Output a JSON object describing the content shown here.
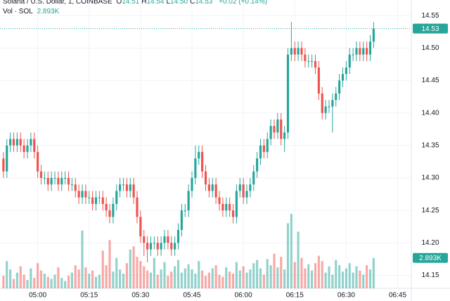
{
  "header": {
    "symbol": "Solana / U.S. Dollar, 1, COINBASE",
    "ohlc": [
      {
        "key": "O",
        "value": "14.51"
      },
      {
        "key": "H",
        "value": "14.54"
      },
      {
        "key": "L",
        "value": "14.50"
      },
      {
        "key": "C",
        "value": "14.53"
      }
    ],
    "change": "+0.02 (+0.14%)",
    "volume_label": "Vol · SOL"
  },
  "chart_data": {
    "type": "candlestick",
    "up_color": "#26a69a",
    "down_color": "#ef5350",
    "grid": true,
    "open": [
      14.33,
      14.31,
      14.35,
      14.36,
      14.35,
      14.36,
      14.35,
      14.34,
      14.35,
      14.36,
      14.34,
      14.31,
      14.3,
      14.3,
      14.29,
      14.3,
      14.3,
      14.29,
      14.3,
      14.3,
      14.29,
      14.29,
      14.28,
      14.27,
      14.28,
      14.27,
      14.27,
      14.26,
      14.27,
      14.27,
      14.26,
      14.25,
      14.24,
      14.26,
      14.28,
      14.29,
      14.29,
      14.28,
      14.29,
      14.27,
      14.24,
      14.21,
      14.2,
      14.19,
      14.2,
      14.2,
      14.19,
      14.2,
      14.21,
      14.2,
      14.19,
      14.2,
      14.22,
      14.25,
      14.25,
      14.28,
      14.3,
      14.33,
      14.34,
      14.31,
      14.29,
      14.28,
      14.29,
      14.27,
      14.26,
      14.25,
      14.26,
      14.25,
      14.24,
      14.28,
      14.29,
      14.27,
      14.28,
      14.29,
      14.31,
      14.33,
      14.35,
      14.34,
      14.36,
      14.38,
      14.37,
      14.39,
      14.36,
      14.37,
      14.49,
      14.5,
      14.49,
      14.5,
      14.49,
      14.48,
      14.48,
      14.48,
      14.47,
      14.43,
      14.4,
      14.41,
      14.41,
      14.42,
      14.43,
      14.45,
      14.46,
      14.47,
      14.49,
      14.49,
      14.5,
      14.49,
      14.5,
      14.49,
      14.51
    ],
    "high": [
      14.34,
      14.36,
      14.37,
      14.37,
      14.37,
      14.37,
      14.36,
      14.36,
      14.37,
      14.37,
      14.35,
      14.32,
      14.31,
      14.31,
      14.31,
      14.31,
      14.31,
      14.31,
      14.31,
      14.31,
      14.3,
      14.3,
      14.29,
      14.29,
      14.29,
      14.28,
      14.28,
      14.28,
      14.28,
      14.28,
      14.27,
      14.26,
      14.27,
      14.29,
      14.3,
      14.3,
      14.3,
      14.3,
      14.3,
      14.28,
      14.25,
      14.22,
      14.21,
      14.21,
      14.21,
      14.21,
      14.21,
      14.22,
      14.22,
      14.21,
      14.21,
      14.23,
      14.26,
      14.26,
      14.29,
      14.31,
      14.35,
      14.35,
      14.35,
      14.32,
      14.3,
      14.3,
      14.3,
      14.28,
      14.27,
      14.27,
      14.27,
      14.26,
      14.29,
      14.3,
      14.3,
      14.29,
      14.3,
      14.32,
      14.34,
      14.36,
      14.36,
      14.37,
      14.39,
      14.39,
      14.4,
      14.4,
      14.38,
      14.5,
      14.54,
      14.51,
      14.51,
      14.51,
      14.5,
      14.49,
      14.49,
      14.49,
      14.48,
      14.44,
      14.42,
      14.42,
      14.43,
      14.44,
      14.46,
      14.47,
      14.48,
      14.5,
      14.5,
      14.51,
      14.51,
      14.51,
      14.51,
      14.52,
      14.54
    ],
    "low": [
      14.3,
      14.3,
      14.34,
      14.34,
      14.34,
      14.34,
      14.33,
      14.33,
      14.34,
      14.33,
      14.3,
      14.29,
      14.29,
      14.28,
      14.28,
      14.29,
      14.28,
      14.28,
      14.29,
      14.28,
      14.28,
      14.27,
      14.26,
      14.26,
      14.26,
      14.26,
      14.25,
      14.25,
      14.26,
      14.25,
      14.24,
      14.23,
      14.23,
      14.25,
      14.27,
      14.28,
      14.27,
      14.27,
      14.26,
      14.23,
      14.2,
      14.18,
      14.17,
      14.18,
      14.19,
      14.18,
      14.18,
      14.19,
      14.19,
      14.18,
      14.18,
      14.19,
      14.21,
      14.24,
      14.24,
      14.27,
      14.29,
      14.32,
      14.3,
      14.28,
      14.27,
      14.27,
      14.26,
      14.25,
      14.24,
      14.24,
      14.24,
      14.23,
      14.23,
      14.27,
      14.26,
      14.26,
      14.27,
      14.28,
      14.3,
      14.32,
      14.33,
      14.33,
      14.35,
      14.36,
      14.36,
      14.35,
      14.34,
      14.36,
      14.48,
      14.48,
      14.48,
      14.48,
      14.47,
      14.47,
      14.47,
      14.46,
      14.42,
      14.39,
      14.39,
      14.4,
      14.37,
      14.41,
      14.42,
      14.44,
      14.45,
      14.46,
      14.48,
      14.48,
      14.48,
      14.48,
      14.48,
      14.48,
      14.5
    ],
    "close": [
      14.31,
      14.35,
      14.36,
      14.35,
      14.36,
      14.35,
      14.34,
      14.35,
      14.36,
      14.34,
      14.31,
      14.3,
      14.3,
      14.29,
      14.3,
      14.3,
      14.29,
      14.3,
      14.3,
      14.29,
      14.29,
      14.28,
      14.27,
      14.28,
      14.27,
      14.27,
      14.26,
      14.27,
      14.27,
      14.26,
      14.25,
      14.24,
      14.26,
      14.28,
      14.29,
      14.29,
      14.28,
      14.29,
      14.27,
      14.24,
      14.21,
      14.2,
      14.19,
      14.2,
      14.2,
      14.19,
      14.2,
      14.21,
      14.2,
      14.19,
      14.2,
      14.22,
      14.25,
      14.25,
      14.28,
      14.3,
      14.33,
      14.34,
      14.31,
      14.29,
      14.28,
      14.29,
      14.27,
      14.26,
      14.25,
      14.26,
      14.25,
      14.24,
      14.28,
      14.29,
      14.27,
      14.28,
      14.29,
      14.31,
      14.33,
      14.35,
      14.34,
      14.36,
      14.38,
      14.37,
      14.39,
      14.36,
      14.37,
      14.49,
      14.5,
      14.49,
      14.5,
      14.49,
      14.48,
      14.48,
      14.48,
      14.47,
      14.43,
      14.4,
      14.41,
      14.41,
      14.42,
      14.43,
      14.45,
      14.46,
      14.47,
      14.49,
      14.49,
      14.5,
      14.49,
      14.5,
      14.49,
      14.51,
      14.53
    ],
    "volume": {
      "values": [
        1200,
        2600,
        1800,
        900,
        1500,
        2100,
        1300,
        800,
        1900,
        1000,
        2400,
        1700,
        1400,
        1100,
        900,
        1300,
        2000,
        1000,
        700,
        1200,
        1500,
        2200,
        1800,
        5500,
        2000,
        1400,
        1700,
        1100,
        1300,
        3600,
        2200,
        4600,
        1600,
        2900,
        1800,
        1400,
        2400,
        3700,
        4000,
        3000,
        2600,
        2100,
        1700,
        1500,
        2900,
        1300,
        1800,
        2500,
        1200,
        1600,
        2100,
        2700,
        1500,
        1900,
        2300,
        1800,
        1400,
        2600,
        1700,
        1200,
        1500,
        1900,
        2200,
        1300,
        1100,
        2000,
        1600,
        1400,
        2500,
        1700,
        2100,
        1500,
        1800,
        2400,
        2700,
        1900,
        1300,
        2800,
        2200,
        3300,
        2000,
        3000,
        1800,
        6200,
        7100,
        2500,
        5400,
        2900,
        1900,
        2300,
        1700,
        2400,
        3100,
        2600,
        1500,
        2100,
        1300,
        2700,
        2200,
        1600,
        1900,
        2400,
        1500,
        2100,
        1700,
        1300,
        2200,
        1800,
        2893
      ],
      "value_labels": [
        null,
        null,
        null,
        null,
        null,
        null,
        null,
        null,
        null,
        null,
        null,
        null,
        null,
        null,
        null,
        null,
        null,
        null,
        null,
        null,
        null,
        null,
        null,
        null,
        null,
        null,
        null,
        null,
        null,
        null,
        null,
        null,
        null,
        null,
        null,
        null,
        null,
        null,
        null,
        null,
        null,
        null,
        null,
        null,
        null,
        null,
        null,
        null,
        null,
        null,
        null,
        null,
        null,
        null,
        null,
        null,
        null,
        null,
        null,
        null,
        null,
        null,
        null,
        null,
        null,
        null,
        null,
        null,
        null,
        null,
        null,
        null,
        null,
        null,
        null,
        null,
        null,
        null,
        null,
        null,
        null,
        null,
        null,
        null,
        null,
        null,
        null,
        null,
        null,
        null,
        null,
        null,
        null,
        null,
        null,
        null,
        null,
        null,
        null,
        null,
        null,
        null,
        null,
        null,
        null,
        null,
        null,
        null,
        "2.893K"
      ]
    },
    "ylim": [
      14.13,
      14.574
    ],
    "yticks": [
      14.15,
      {
        "value": 14.2,
        "label": "14.20"
      },
      14.25,
      {
        "value": 14.3,
        "label": "14.30"
      },
      14.35,
      {
        "value": 14.4,
        "label": "14.40"
      },
      14.45,
      {
        "value": 14.5,
        "label": "14.50"
      },
      14.55
    ],
    "xlim": [
      -1,
      119
    ],
    "xticks": [
      {
        "value": 10,
        "label": "05:00"
      },
      {
        "value": 25,
        "label": "05:15"
      },
      {
        "value": 40,
        "label": "05:30"
      },
      {
        "value": 55,
        "label": "05:45"
      },
      {
        "value": 70,
        "label": "06:00"
      },
      {
        "value": 85,
        "label": "06:15"
      },
      {
        "value": 100,
        "label": "06:30"
      },
      {
        "value": 115,
        "label": "06:45"
      }
    ]
  }
}
